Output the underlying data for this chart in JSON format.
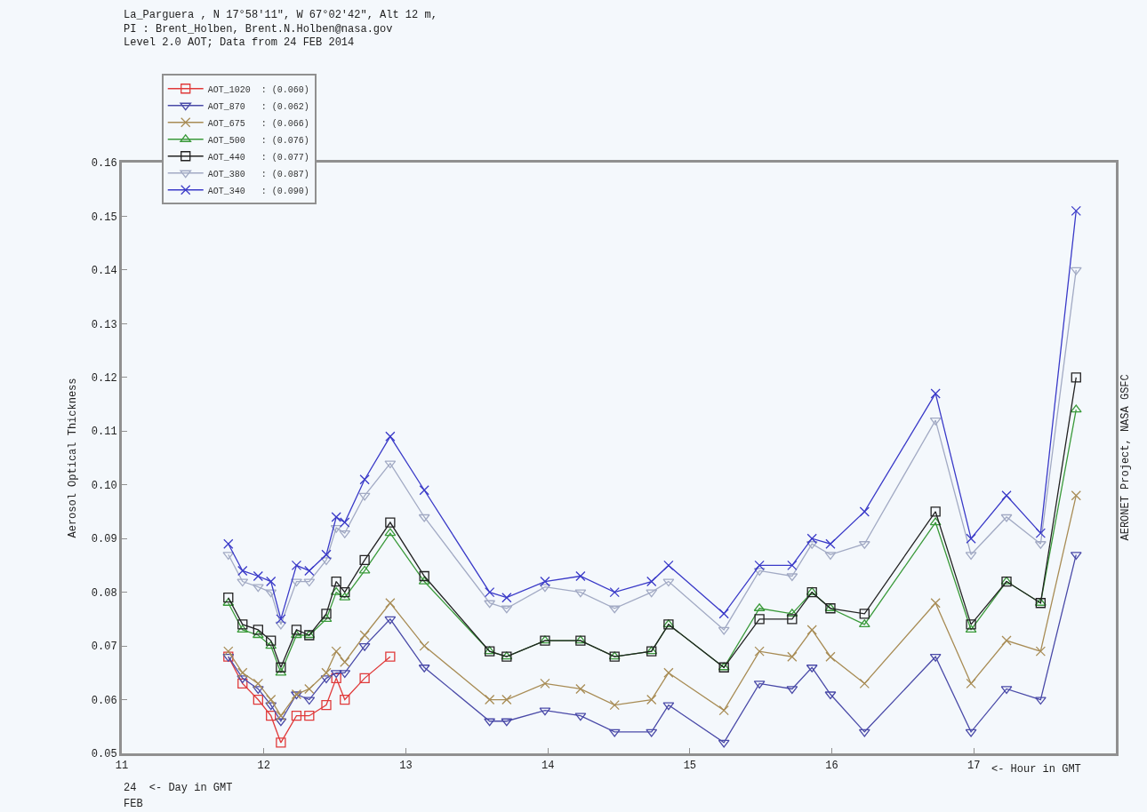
{
  "chart_data": {
    "type": "line",
    "title": "La_Parguera , N 17°58'11\", W 67°02'42\", Alt 12 m,\nPI : Brent_Holben, Brent.N.Holben@nasa.gov\nLevel 2.0 AOT; Data from 24 FEB 2014",
    "ylabel": "Aerosol Optical Thickness",
    "xlabel": "<- Hour in GMT",
    "annotations": [
      "24  <- Day in GMT",
      "FEB",
      "AERONET Project, NASA GSFC"
    ],
    "x": [
      11.75,
      11.85,
      11.96,
      12.05,
      12.12,
      12.23,
      12.32,
      12.44,
      12.51,
      12.57,
      12.71,
      12.89,
      13.13,
      13.59,
      13.71,
      13.98,
      14.23,
      14.47,
      14.73,
      14.85,
      15.24,
      15.49,
      15.72,
      15.86,
      15.99,
      16.23,
      16.73,
      16.98,
      17.23,
      17.47,
      17.72
    ],
    "series": [
      {
        "name": "AOT_1020  : (0.060)",
        "color": "#e03a3a",
        "marker": "square",
        "values": [
          0.068,
          0.063,
          0.06,
          0.057,
          0.052,
          0.057,
          0.057,
          0.059,
          0.064,
          0.06,
          0.064,
          0.068,
          null,
          null,
          null,
          null,
          null,
          null,
          null,
          null,
          null,
          null,
          null,
          null,
          null,
          null,
          null,
          null,
          null,
          null,
          null
        ]
      },
      {
        "name": "AOT_870   : (0.062)",
        "color": "#4a4aa8",
        "marker": "triangle-down",
        "values": [
          0.068,
          0.064,
          0.062,
          0.059,
          0.056,
          0.061,
          0.06,
          0.064,
          0.065,
          0.065,
          0.07,
          0.075,
          0.066,
          0.056,
          0.056,
          0.058,
          0.057,
          0.054,
          0.054,
          0.059,
          0.052,
          0.063,
          0.062,
          0.066,
          0.061,
          0.054,
          0.068,
          0.054,
          0.062,
          0.06,
          0.087
        ]
      },
      {
        "name": "AOT_675   : (0.066)",
        "color": "#a88c55",
        "marker": "cross",
        "values": [
          0.069,
          0.065,
          0.063,
          0.06,
          0.057,
          0.061,
          0.062,
          0.065,
          0.069,
          0.067,
          0.072,
          0.078,
          0.07,
          0.06,
          0.06,
          0.063,
          0.062,
          0.059,
          0.06,
          0.065,
          0.058,
          0.069,
          0.068,
          0.073,
          0.068,
          0.063,
          0.078,
          0.063,
          0.071,
          0.069,
          0.098
        ]
      },
      {
        "name": "AOT_500   : (0.076)",
        "color": "#3a9a3a",
        "marker": "triangle",
        "values": [
          0.078,
          0.073,
          0.072,
          0.07,
          0.065,
          0.072,
          0.072,
          0.075,
          0.08,
          0.079,
          0.084,
          0.091,
          0.082,
          0.069,
          0.068,
          0.071,
          0.071,
          0.068,
          0.069,
          0.074,
          0.066,
          0.077,
          0.076,
          0.08,
          0.077,
          0.074,
          0.093,
          0.073,
          0.082,
          0.078,
          0.114
        ]
      },
      {
        "name": "AOT_440   : (0.077)",
        "color": "#222222",
        "marker": "square",
        "values": [
          0.079,
          0.074,
          0.073,
          0.071,
          0.066,
          0.073,
          0.072,
          0.076,
          0.082,
          0.08,
          0.086,
          0.093,
          0.083,
          0.069,
          0.068,
          0.071,
          0.071,
          0.068,
          0.069,
          0.074,
          0.066,
          0.075,
          0.075,
          0.08,
          0.077,
          0.076,
          0.095,
          0.074,
          0.082,
          0.078,
          0.12
        ]
      },
      {
        "name": "AOT_380   : (0.087)",
        "color": "#a2aac4",
        "marker": "triangle-down",
        "values": [
          0.087,
          0.082,
          0.081,
          0.08,
          0.074,
          0.082,
          0.082,
          0.086,
          0.092,
          0.091,
          0.098,
          0.104,
          0.094,
          0.078,
          0.077,
          0.081,
          0.08,
          0.077,
          0.08,
          0.082,
          0.073,
          0.084,
          0.083,
          0.089,
          0.087,
          0.089,
          0.112,
          0.087,
          0.094,
          0.089,
          0.14
        ]
      },
      {
        "name": "AOT_340   : (0.090)",
        "color": "#3a3ac8",
        "marker": "cross",
        "values": [
          0.089,
          0.084,
          0.083,
          0.082,
          0.075,
          0.085,
          0.084,
          0.087,
          0.094,
          0.093,
          0.101,
          0.109,
          0.099,
          0.08,
          0.079,
          0.082,
          0.083,
          0.08,
          0.082,
          0.085,
          0.076,
          0.085,
          0.085,
          0.09,
          0.089,
          0.095,
          0.117,
          0.09,
          0.098,
          0.091,
          0.151
        ]
      }
    ],
    "xlim": [
      11,
      18
    ],
    "xticks": [
      11,
      12,
      13,
      14,
      15,
      16,
      17
    ],
    "ylim": [
      0.05,
      0.16
    ],
    "yticks": [
      0.05,
      0.06,
      0.07,
      0.08,
      0.09,
      {
        "value": 0.1,
        "label": "0.10"
      },
      0.11,
      0.12,
      0.13,
      0.14,
      0.15,
      0.16
    ],
    "grid": false,
    "legend": "top left",
    "line_style": "solid"
  }
}
